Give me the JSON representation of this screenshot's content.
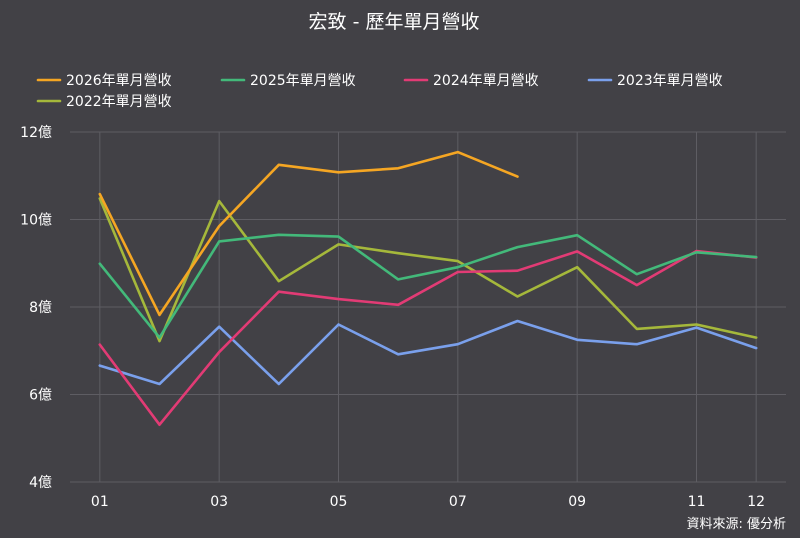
{
  "chart_data": {
    "type": "line",
    "title": "宏致 - 歷年單月營收",
    "source": "資料來源: 優分析",
    "x": [
      1,
      2,
      3,
      4,
      5,
      6,
      7,
      8,
      9,
      10,
      11,
      12
    ],
    "x_tick_labels": [
      {
        "x": 1,
        "label": "01"
      },
      {
        "x": 3,
        "label": "03"
      },
      {
        "x": 5,
        "label": "05"
      },
      {
        "x": 7,
        "label": "07"
      },
      {
        "x": 9,
        "label": "09"
      },
      {
        "x": 11,
        "label": "11"
      },
      {
        "x": 12,
        "label": "12"
      }
    ],
    "y_ticks": [
      {
        "value": 4,
        "label": "4億"
      },
      {
        "value": 6,
        "label": "6億"
      },
      {
        "value": 8,
        "label": "8億"
      },
      {
        "value": 10,
        "label": "10億"
      },
      {
        "value": 12,
        "label": "12億"
      }
    ],
    "ylim": [
      4,
      12
    ],
    "xlim": [
      0.5,
      12.5
    ],
    "grid": true,
    "legend_position": "top",
    "series": [
      {
        "name": "2026年單月營收",
        "color": "#f5a623",
        "values": [
          10.58,
          7.82,
          9.85,
          11.25,
          11.08,
          11.17,
          11.54,
          10.98,
          null,
          null,
          null,
          null
        ]
      },
      {
        "name": "2025年單月營收",
        "color": "#43b97a",
        "values": [
          8.99,
          7.3,
          9.5,
          9.65,
          9.61,
          8.63,
          8.91,
          9.37,
          9.64,
          8.75,
          9.25,
          9.14
        ]
      },
      {
        "name": "2024年單月營收",
        "color": "#e23b75",
        "values": [
          7.14,
          5.31,
          6.97,
          8.35,
          8.18,
          8.05,
          8.8,
          8.83,
          9.27,
          8.5,
          9.28,
          9.13
        ]
      },
      {
        "name": "2023年單月營收",
        "color": "#7aa0ec",
        "values": [
          6.66,
          6.24,
          7.55,
          6.24,
          7.6,
          6.92,
          7.15,
          7.68,
          7.25,
          7.15,
          7.53,
          7.06
        ]
      },
      {
        "name": "2022年單月營收",
        "color": "#a5b83b",
        "values": [
          10.48,
          7.22,
          10.42,
          8.59,
          9.43,
          9.23,
          9.05,
          8.24,
          8.91,
          7.5,
          7.6,
          7.3
        ]
      }
    ]
  }
}
